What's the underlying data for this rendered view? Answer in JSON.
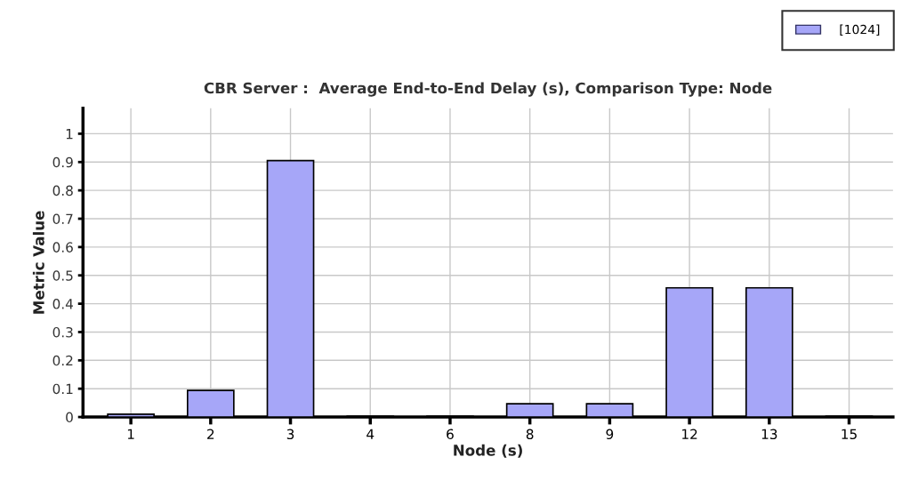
{
  "chart_data": {
    "type": "bar",
    "title": "CBR Server :  Average End-to-End Delay (s), Comparison Type: Node",
    "xlabel": "Node (s)",
    "ylabel": "Metric Value",
    "categories": [
      "1",
      "2",
      "3",
      "4",
      "6",
      "8",
      "9",
      "12",
      "13",
      "15"
    ],
    "series": [
      {
        "name": "[1024]",
        "color": "#a6a6f8",
        "values": [
          0.01,
          0.094,
          0.905,
          0.003,
          0.003,
          0.047,
          0.047,
          0.456,
          0.456,
          0.003
        ]
      }
    ],
    "ylim": [
      0,
      1.09
    ],
    "yticks": [
      0,
      0.1,
      0.2,
      0.3,
      0.4,
      0.5,
      0.6,
      0.7,
      0.8,
      0.9,
      1
    ],
    "grid": true,
    "legend": "top right"
  }
}
